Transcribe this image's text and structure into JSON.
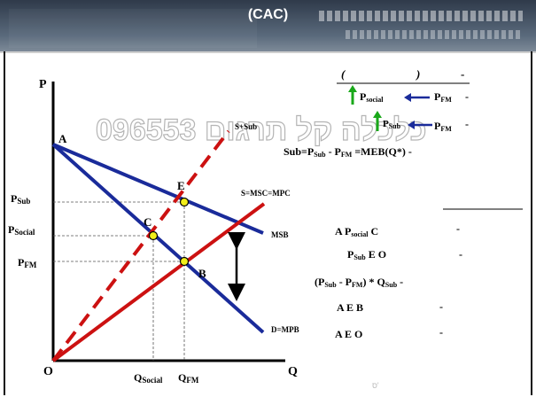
{
  "slide": {
    "title": "(CAC)",
    "accent_color": "#1a2b9a",
    "watermark": "096553 כלכלה קל תרגום",
    "footer_marks": "ס'"
  },
  "diagram": {
    "axis_p": "P",
    "axis_q": "Q",
    "origin": "O",
    "point_a": "A",
    "point_b": "B",
    "point_c": "C",
    "point_e": "E",
    "curve_supply_sub": "S+Sub",
    "curve_supply": "S=MSC=MPC",
    "curve_msb": "MSB",
    "curve_demand": "D=MPB",
    "p_sub_main": "P",
    "p_sub_sub": "Sub",
    "p_social_main": "P",
    "p_social_sub": "Social",
    "p_fm_main": "P",
    "p_fm_sub": "FM",
    "q_social_main": "Q",
    "q_social_sub": "Social",
    "q_fm_main": "Q",
    "q_fm_sub": "FM"
  },
  "notes": {
    "heading_left": "(",
    "heading_right": ")",
    "heading_dash": "-",
    "row1_social_main": "P",
    "row1_social_sub": "social",
    "row1_fm_main": "P",
    "row1_fm_sub": "FM",
    "row1_dash": "-",
    "row2_sub_main": "P",
    "row2_sub_sub": "Sub",
    "row2_fm_main": "P",
    "row2_fm_sub": "FM",
    "row2_dash": "-",
    "formula_sub_label": "Sub=P",
    "formula_sub_sub": "Sub",
    "formula_dash_p": " - P",
    "formula_fm_sub": "FM",
    "formula_tail": " =MEB(Q*) -",
    "list1_text": "A  P",
    "list1_sub": "social",
    "list1_tail": " C",
    "list1_dash": "-",
    "list2_main": "P",
    "list2_sub": "Sub",
    "list2_tail": " E O",
    "list2_dash": "-",
    "list3_open": "(P",
    "list3_sub1": "Sub",
    "list3_mid": " - P",
    "list3_sub2": "FM",
    "list3_mid2": ") * Q",
    "list3_sub3": "Sub",
    "list3_dash": " -",
    "list4_text": "A E B",
    "list4_dash": "-",
    "list5_text": "A E O",
    "list5_dash": "-"
  }
}
